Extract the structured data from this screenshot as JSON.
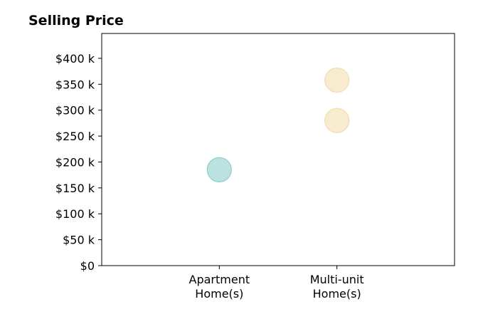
{
  "chart_data": {
    "type": "scatter",
    "title": "Selling Price",
    "xlabel": "",
    "ylabel": "",
    "categories": [
      [
        "Apartment",
        "Home(s)"
      ],
      [
        "Multi-unit",
        "Home(s)"
      ]
    ],
    "y_ticks": [
      0,
      50,
      100,
      150,
      200,
      250,
      300,
      350,
      400
    ],
    "y_tick_labels": [
      "$0",
      "$50 k",
      "$100 k",
      "$150 k",
      "$200 k",
      "$250 k",
      "$300 k",
      "$350 k",
      "$400 k"
    ],
    "ylim": [
      0,
      448
    ],
    "xlim": [
      -1,
      2
    ],
    "grid": false,
    "points": [
      {
        "category": 0,
        "value": 185,
        "color": "#8ecfc9"
      },
      {
        "category": 1,
        "value": 280,
        "color": "#f2ddb0"
      },
      {
        "category": 1,
        "value": 358,
        "color": "#f2ddb0"
      }
    ]
  }
}
